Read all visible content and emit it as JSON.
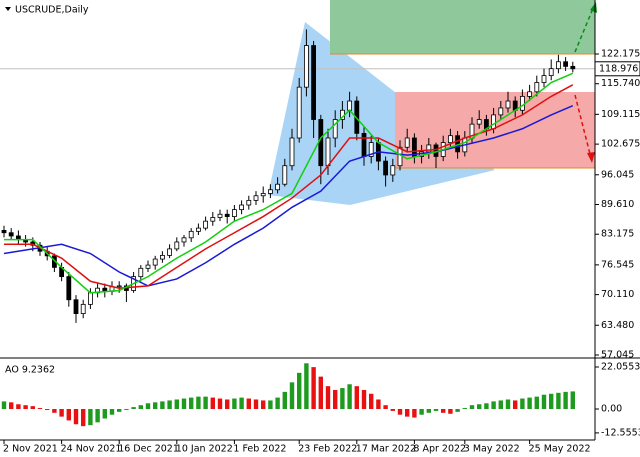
{
  "chart_data": [
    {
      "type": "candlestick",
      "title": "USCRUDE,Daily",
      "categories": [
        "2 Nov 2021",
        null,
        null,
        null,
        null,
        null,
        null,
        null,
        "24 Nov 2021",
        null,
        null,
        null,
        null,
        null,
        null,
        null,
        "16 Dec 2021",
        null,
        null,
        null,
        null,
        null,
        null,
        null,
        "10 Jan 2022",
        null,
        null,
        null,
        null,
        null,
        null,
        null,
        "1 Feb 2022",
        null,
        null,
        null,
        null,
        null,
        null,
        null,
        null,
        "23 Feb 2022",
        null,
        null,
        null,
        null,
        null,
        null,
        null,
        "17 Mar 2022",
        null,
        null,
        null,
        null,
        null,
        null,
        null,
        "8 Apr 2022",
        null,
        null,
        null,
        null,
        null,
        null,
        "3 May 2022",
        null,
        null,
        null,
        null,
        null,
        null,
        null,
        null,
        "25 May 2022",
        null,
        null,
        null,
        null,
        null,
        null
      ],
      "ohlc": [
        [
          84,
          85,
          82.5,
          83.5
        ],
        [
          83.5,
          84.5,
          82,
          82.8
        ],
        [
          82.8,
          84,
          81,
          82
        ],
        [
          82,
          83,
          80.5,
          81.5
        ],
        [
          81.5,
          82.5,
          79.5,
          80.8
        ],
        [
          80.8,
          81.5,
          78.5,
          79.5
        ],
        [
          79.5,
          80.5,
          77.5,
          78.5
        ],
        [
          78.5,
          79,
          75,
          76
        ],
        [
          76,
          77,
          73,
          74
        ],
        [
          74,
          75,
          67.5,
          69
        ],
        [
          69,
          70,
          64,
          66
        ],
        [
          66,
          69,
          65,
          68
        ],
        [
          68,
          71.5,
          67,
          70.5
        ],
        [
          70.5,
          72.5,
          69.5,
          71.5
        ],
        [
          71.5,
          72.5,
          69.5,
          70.8
        ],
        [
          70.8,
          73,
          70,
          71.8
        ],
        [
          71.8,
          73,
          70.5,
          72
        ],
        [
          72,
          72.5,
          68.5,
          71
        ],
        [
          71,
          75,
          70.5,
          74
        ],
        [
          74,
          76.5,
          73,
          75.8
        ],
        [
          75.8,
          77.5,
          75,
          76.5
        ],
        [
          76.5,
          78.5,
          75.5,
          77.8
        ],
        [
          77.8,
          79.5,
          77,
          78.6
        ],
        [
          78.6,
          81,
          78,
          80
        ],
        [
          80,
          82.5,
          79.5,
          81.5
        ],
        [
          81.5,
          83,
          80.5,
          82.4
        ],
        [
          82.4,
          84.5,
          81.5,
          83.8
        ],
        [
          83.8,
          85.5,
          83,
          84.5
        ],
        [
          84.5,
          87,
          84,
          86
        ],
        [
          86,
          88,
          85,
          86.8
        ],
        [
          86.8,
          88.5,
          86,
          87.5
        ],
        [
          87.5,
          88.5,
          85.5,
          87
        ],
        [
          87,
          89.5,
          86,
          88.5
        ],
        [
          88.5,
          90.5,
          87.5,
          89.5
        ],
        [
          89.5,
          91.5,
          88.5,
          90.5
        ],
        [
          90.5,
          92.5,
          89.5,
          91.5
        ],
        [
          91.5,
          93.5,
          90,
          92
        ],
        [
          92,
          94,
          91,
          92.8
        ],
        [
          92.8,
          95.5,
          92,
          94
        ],
        [
          94,
          99.5,
          93.5,
          98
        ],
        [
          98,
          106,
          97,
          104
        ],
        [
          104,
          117,
          103,
          115
        ],
        [
          115,
          127.5,
          113,
          124
        ],
        [
          124,
          125,
          104,
          108
        ],
        [
          108,
          109,
          94,
          98
        ],
        [
          98,
          106,
          96,
          104
        ],
        [
          104,
          110,
          102,
          108
        ],
        [
          108,
          112,
          106,
          110
        ],
        [
          110,
          114,
          108.5,
          112
        ],
        [
          112,
          113,
          103.5,
          105
        ],
        [
          105,
          106.5,
          98,
          100
        ],
        [
          100,
          104.5,
          98.5,
          103
        ],
        [
          103,
          104,
          97,
          99
        ],
        [
          99,
          100,
          93.5,
          96
        ],
        [
          96,
          99.5,
          94.5,
          98
        ],
        [
          98,
          103.5,
          97,
          102
        ],
        [
          102,
          106,
          101,
          104
        ],
        [
          104,
          105,
          98.5,
          100
        ],
        [
          100,
          102.5,
          98.5,
          101
        ],
        [
          101,
          104,
          99.5,
          102.5
        ],
        [
          102.5,
          103,
          97.5,
          100
        ],
        [
          100,
          104.5,
          99,
          103
        ],
        [
          103,
          106,
          102,
          104.5
        ],
        [
          104.5,
          105.5,
          99.5,
          101
        ],
        [
          101,
          105.5,
          100,
          104
        ],
        [
          104,
          108.5,
          103,
          107
        ],
        [
          107,
          110,
          106,
          108
        ],
        [
          108,
          109,
          104.5,
          106
        ],
        [
          106,
          110.5,
          105,
          109
        ],
        [
          109,
          112,
          108,
          110.5
        ],
        [
          110.5,
          114,
          109.5,
          112
        ],
        [
          112,
          113,
          108.5,
          110
        ],
        [
          110,
          114.5,
          109,
          113
        ],
        [
          113,
          115.5,
          112,
          114
        ],
        [
          114,
          117.5,
          113,
          116
        ],
        [
          116,
          119,
          115,
          117.5
        ],
        [
          117.5,
          121,
          116.5,
          119
        ],
        [
          119,
          122,
          118,
          120.5
        ],
        [
          120.5,
          121.5,
          118.5,
          119.5
        ],
        [
          119.5,
          120.5,
          118.2,
          118.976
        ]
      ],
      "ylim": [
        56.61,
        133.86
      ],
      "yticks": [
        122.175,
        {
          "value": 115.74,
          "label": "115.740"
        },
        109.115,
        102.675,
        96.045,
        {
          "value": 89.61,
          "label": "89.610"
        },
        83.175,
        76.545,
        {
          "value": 70.11,
          "label": "70.110"
        },
        {
          "value": 63.48,
          "label": "63.480"
        },
        57.045
      ],
      "last_price": 118.976,
      "up_color": "#ffffff",
      "down_color": "#000000",
      "lines": {
        "x": [
          0,
          4,
          8,
          12,
          16,
          20,
          24,
          28,
          32,
          36,
          40,
          44,
          48,
          52,
          56,
          60,
          64,
          68,
          72,
          76,
          79
        ],
        "series": [
          {
            "color": "#1a1ad6",
            "values": [
              79,
              80,
              81,
              79,
              75,
              72,
              73.5,
              77,
              81,
              84.5,
              89,
              92.5,
              99,
              101,
              100.3,
              101,
              102.5,
              104,
              106,
              109,
              111
            ]
          },
          {
            "color": "#e01010",
            "values": [
              81,
              81,
              78,
              73,
              71.5,
              72,
              76,
              80,
              83.5,
              87,
              91,
              96,
              104,
              104,
              101,
              101.5,
              104,
              106,
              109,
              113,
              115.5
            ]
          },
          {
            "color": "#10d010",
            "values": [
              82,
              82,
              76,
              70.5,
              71,
              74,
              78,
              81.5,
              86,
              88.5,
              92,
              104,
              110,
              103,
              99.5,
              101,
              103,
              107,
              111,
              116,
              118
            ]
          }
        ]
      }
    },
    {
      "type": "bar",
      "title": "AO 9.2362",
      "values": [
        4,
        3.5,
        2.5,
        2,
        1.5,
        0.5,
        -0.5,
        -2,
        -4,
        -6,
        -8,
        -9,
        -8.5,
        -7,
        -5,
        -3,
        -1.5,
        -0.5,
        1,
        2,
        3,
        3.5,
        4,
        4.5,
        5,
        5.5,
        6,
        6.5,
        6.5,
        6,
        5.5,
        5,
        5.5,
        6,
        5.5,
        5,
        4.5,
        4.5,
        6,
        9,
        14,
        19,
        24,
        22,
        17,
        12,
        10,
        11,
        13,
        12,
        10,
        8,
        5,
        2,
        -1,
        -3,
        -4,
        -4.5,
        -3,
        -2,
        -1,
        -2,
        -2.5,
        -1.5,
        0.5,
        2,
        2.5,
        3,
        4,
        4.5,
        5,
        4.5,
        5.5,
        6,
        6.5,
        7.5,
        8,
        8.5,
        9,
        9.2362
      ],
      "ylim": [
        -16.28,
        25.74
      ],
      "yticks": [
        22.0553,
        {
          "value": 0,
          "label": "0.00"
        },
        -12.5553
      ],
      "up_color": "#1e9a1e",
      "down_color": "#e81010"
    }
  ]
}
